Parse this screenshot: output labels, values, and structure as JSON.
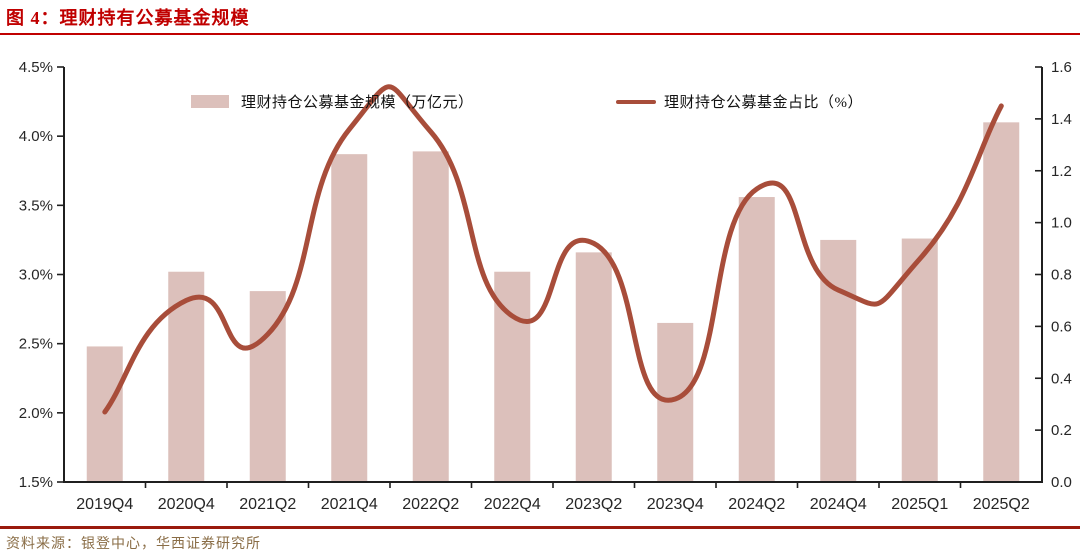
{
  "header": {
    "title": "图 4：理财持有公募基金规模"
  },
  "footer": {
    "source": "资料来源：银登中心，华西证券研究所"
  },
  "colors": {
    "title_red": "#c00000",
    "title_rule": "#c00000",
    "footer_rule": "#9a1a0d",
    "bar_fill": "#dcc0bb",
    "line_stroke": "#a84d3a",
    "axis": "#1f1f1f",
    "tick_text": "#262626",
    "source_text": "#8a6d46"
  },
  "chart_data": {
    "type": "bar",
    "subtype": "combo-bar-line",
    "categories": [
      "2019Q4",
      "2020Q4",
      "2021Q2",
      "2021Q4",
      "2022Q2",
      "2022Q4",
      "2023Q2",
      "2023Q4",
      "2024Q2",
      "2024Q4",
      "2025Q1",
      "2025Q2"
    ],
    "series": [
      {
        "name": "理财持仓公募基金规模（万亿元）",
        "type": "bar",
        "axis": "left",
        "values": [
          2.48,
          3.02,
          2.88,
          3.87,
          3.89,
          3.02,
          3.16,
          2.65,
          3.56,
          3.25,
          3.26,
          4.1
        ]
      },
      {
        "name": "理财持仓公募基金占比（%）",
        "type": "line",
        "axis": "right",
        "values": [
          0.27,
          0.7,
          0.57,
          1.36,
          1.35,
          0.64,
          0.92,
          0.32,
          1.13,
          0.74,
          0.86,
          1.45
        ]
      }
    ],
    "left_axis": {
      "min": 1.5,
      "max": 4.5,
      "step": 0.5,
      "ticks": [
        "4.5%",
        "4.0%",
        "3.5%",
        "3.0%",
        "2.5%",
        "2.0%",
        "1.5%"
      ]
    },
    "right_axis": {
      "min": 0.0,
      "max": 1.6,
      "step": 0.2,
      "ticks": [
        "1.6",
        "1.4",
        "1.2",
        "1.0",
        "0.8",
        "0.6",
        "0.4",
        "0.2",
        "0.0"
      ]
    },
    "title": "图 4：理财持有公募基金规模",
    "xlabel": "",
    "ylabel": "",
    "grid": false,
    "legend_position": "top"
  }
}
